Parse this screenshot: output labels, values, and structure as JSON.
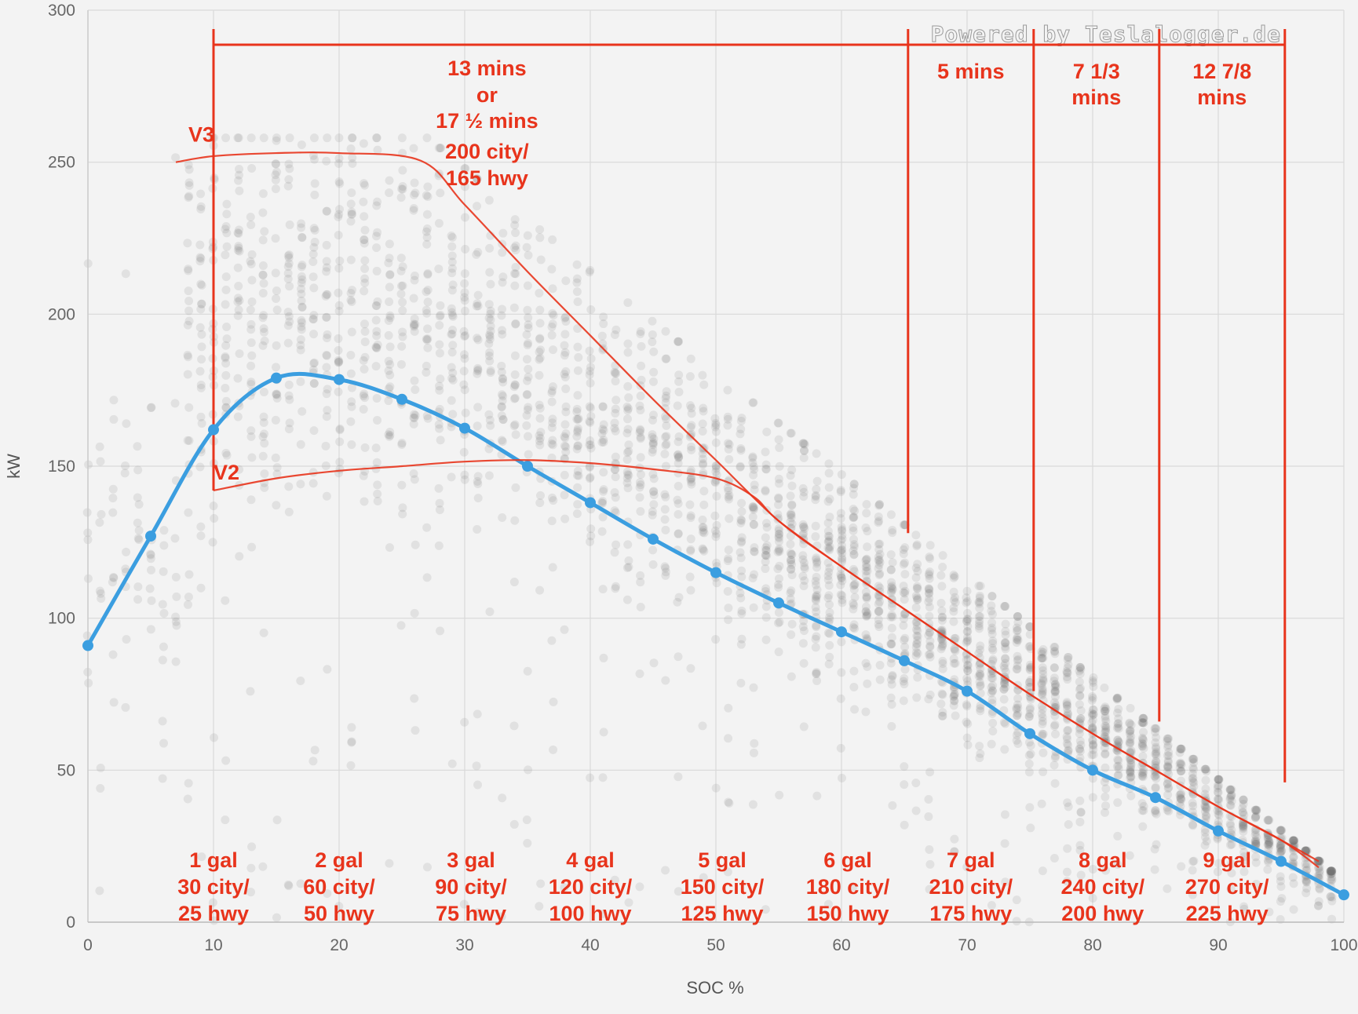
{
  "chart_data": {
    "type": "scatter",
    "xlabel": "SOC %",
    "ylabel": "kW",
    "xlim": [
      0,
      100
    ],
    "ylim": [
      0,
      300
    ],
    "x_ticks": [
      0,
      10,
      20,
      30,
      40,
      50,
      60,
      70,
      80,
      90,
      100
    ],
    "y_ticks": [
      0,
      50,
      100,
      150,
      200,
      250,
      300
    ],
    "grid": true,
    "watermark": "Powered by Teslalogger.de",
    "colors": {
      "scatter": "#6b6b6b",
      "curve": "#3b9ee0",
      "annotation": "#e8341c",
      "grid": "#d9d9d9"
    },
    "series": [
      {
        "type": "line",
        "values": [
          [
            0,
            91
          ],
          [
            5,
            127
          ],
          [
            10,
            162
          ],
          [
            15,
            179
          ],
          [
            20,
            178.5
          ],
          [
            25,
            172
          ],
          [
            30,
            162.5
          ],
          [
            35,
            150
          ],
          [
            40,
            138
          ],
          [
            45,
            126
          ],
          [
            50,
            115
          ],
          [
            55,
            105
          ],
          [
            60,
            95.5
          ],
          [
            65,
            86
          ],
          [
            70,
            76
          ],
          [
            75,
            62
          ],
          [
            80,
            50
          ],
          [
            85,
            41
          ],
          [
            90,
            30
          ],
          [
            95,
            20
          ],
          [
            100,
            9
          ]
        ]
      },
      {
        "name": "V3",
        "type": "line",
        "values": [
          [
            7,
            250
          ],
          [
            10,
            252
          ],
          [
            15,
            253
          ],
          [
            20,
            253
          ],
          [
            26.5,
            250.5
          ],
          [
            30,
            236
          ],
          [
            35,
            214
          ],
          [
            40,
            193
          ],
          [
            45,
            172
          ],
          [
            50,
            152
          ],
          [
            55,
            132
          ],
          [
            60,
            117
          ],
          [
            65,
            103
          ],
          [
            70,
            89
          ],
          [
            75,
            75
          ],
          [
            80,
            62
          ],
          [
            85,
            50
          ],
          [
            90,
            38
          ],
          [
            95,
            27
          ],
          [
            98,
            18
          ]
        ]
      },
      {
        "name": "V2",
        "type": "line",
        "values": [
          [
            10,
            142
          ],
          [
            15,
            146
          ],
          [
            20,
            148.5
          ],
          [
            25,
            150
          ],
          [
            30,
            151.5
          ],
          [
            35,
            152
          ],
          [
            40,
            151
          ],
          [
            45,
            149
          ],
          [
            50,
            146
          ],
          [
            53,
            140
          ],
          [
            55,
            132
          ],
          [
            60,
            117
          ],
          [
            65,
            103
          ],
          [
            70,
            89
          ],
          [
            75,
            75
          ],
          [
            80,
            62
          ],
          [
            85,
            50
          ],
          [
            90,
            38
          ],
          [
            95,
            27
          ],
          [
            98,
            20
          ]
        ]
      }
    ],
    "annotations": {
      "time_brackets": [
        {
          "x_start": 10,
          "x_end": 65.3,
          "lines": [
            "13 mins",
            "or",
            "17 ½ mins",
            "200 city/",
            "165 hwy"
          ]
        },
        {
          "x_start": 65.3,
          "x_end": 75.3,
          "lines": [
            "5 mins"
          ]
        },
        {
          "x_start": 75.3,
          "x_end": 85.3,
          "lines": [
            "7 1/3",
            "mins"
          ]
        },
        {
          "x_start": 85.3,
          "x_end": 95.3,
          "lines": [
            "12 7/8",
            "mins"
          ]
        }
      ],
      "gallons": [
        {
          "x": 10,
          "lines": [
            "1 gal",
            "30 city/",
            "25 hwy"
          ]
        },
        {
          "x": 20,
          "lines": [
            "2 gal",
            "60 city/",
            "50 hwy"
          ]
        },
        {
          "x": 30.5,
          "lines": [
            "3 gal",
            "90 city/",
            "75 hwy"
          ]
        },
        {
          "x": 40,
          "lines": [
            "4 gal",
            "120 city/",
            "100 hwy"
          ]
        },
        {
          "x": 50.5,
          "lines": [
            "5 gal",
            "150 city/",
            "125 hwy"
          ]
        },
        {
          "x": 60.5,
          "lines": [
            "6 gal",
            "180 city/",
            "150 hwy"
          ]
        },
        {
          "x": 70.3,
          "lines": [
            "7 gal",
            "210 city/",
            "175 hwy"
          ]
        },
        {
          "x": 80.8,
          "lines": [
            "8 gal",
            "240 city/",
            "200 hwy"
          ]
        },
        {
          "x": 90.7,
          "lines": [
            "9 gal",
            "270 city/",
            "225 hwy"
          ]
        }
      ]
    }
  }
}
